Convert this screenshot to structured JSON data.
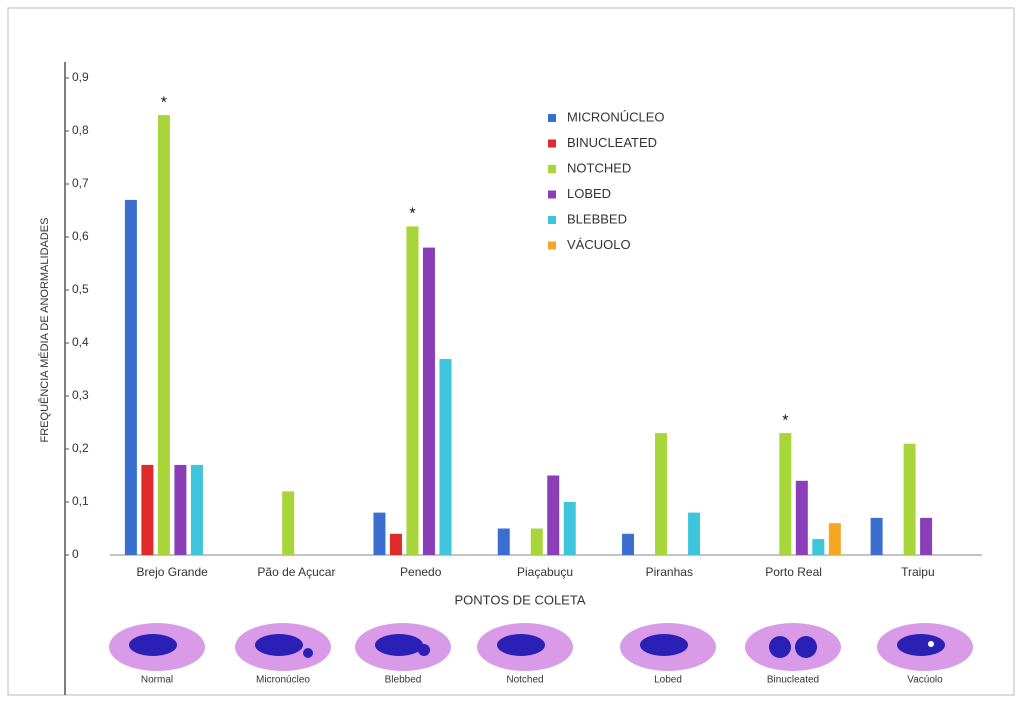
{
  "chart_data": {
    "type": "bar",
    "y_label": "FREQUÊNCIA MÉDIA DE ANORMALIDADES",
    "x_label": "PONTOS DE COLETA",
    "categories": [
      "Brejo Grande",
      "Pão de Açucar",
      "Penedo",
      "Piaçabuçu",
      "Piranhas",
      "Porto Real",
      "Traipu"
    ],
    "series": [
      {
        "name": "MICRONÚCLEO",
        "color": "#3a6fd0",
        "values": [
          0.67,
          0,
          0.08,
          0.05,
          0.04,
          0,
          0.07
        ]
      },
      {
        "name": "BINUCLEATED",
        "color": "#e02a2a",
        "values": [
          0.17,
          0,
          0.04,
          0,
          0,
          0,
          0
        ]
      },
      {
        "name": "NOTCHED",
        "color": "#a8d53a",
        "values": [
          0.83,
          0.12,
          0.62,
          0.05,
          0.23,
          0.23,
          0.21
        ]
      },
      {
        "name": "LOBED",
        "color": "#8a3fb8",
        "values": [
          0.17,
          0,
          0.58,
          0.15,
          0,
          0.14,
          0.07
        ]
      },
      {
        "name": "BLEBBED",
        "color": "#3ec5dc",
        "values": [
          0.17,
          0,
          0.37,
          0.1,
          0.08,
          0.03,
          0
        ]
      },
      {
        "name": "VÁCUOLO",
        "color": "#f5a623",
        "values": [
          0,
          0,
          0,
          0,
          0,
          0.06,
          0
        ]
      }
    ],
    "significance": [
      "*",
      null,
      "*",
      null,
      null,
      "*",
      null
    ],
    "ylim": [
      0,
      0.9
    ],
    "yticks": [
      0,
      {
        "value": 0.1,
        "label": "0,1"
      },
      {
        "value": 0.2,
        "label": "0,2"
      },
      {
        "value": 0.3,
        "label": "0,3"
      },
      {
        "value": 0.4,
        "label": "0,4"
      },
      {
        "value": 0.5,
        "label": "0,5"
      },
      {
        "value": 0.6,
        "label": "0,6"
      },
      {
        "value": 0.7,
        "label": "0,7"
      },
      {
        "value": 0.8,
        "label": "0,8"
      },
      {
        "value": 0.9,
        "label": "0,9"
      }
    ],
    "grid": false,
    "legend_position": "top",
    "cell_types": [
      "Normal",
      "Micronúcleo",
      "Blebbed",
      "Notched",
      "Lobed",
      "Binucleated",
      "Vacúolo"
    ]
  }
}
